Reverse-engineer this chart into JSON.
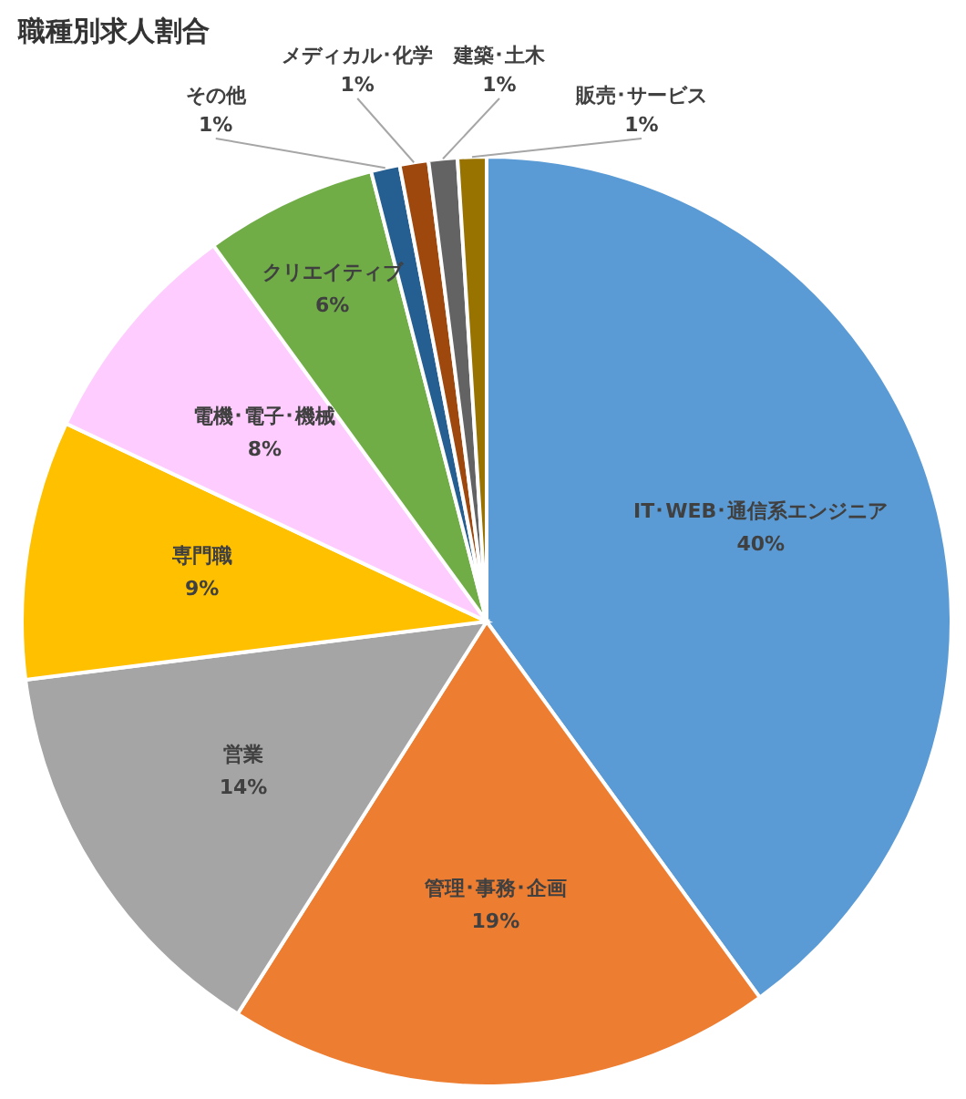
{
  "chart_data": {
    "type": "pie",
    "title": "職種別求人割合",
    "categories": [
      "IT･WEB･通信系エンジニア",
      "管理･事務･企画",
      "営業",
      "専門職",
      "電機･電子･機械",
      "クリエイティブ",
      "その他",
      "メディカル･化学",
      "建築･土木",
      "販売･サービス"
    ],
    "values": [
      40,
      19,
      14,
      9,
      8,
      6,
      1,
      1,
      1,
      1
    ],
    "value_labels": [
      "40%",
      "19%",
      "14%",
      "9%",
      "8%",
      "6%",
      "1%",
      "1%",
      "1%",
      "1%"
    ],
    "colors": [
      "#5b9bd5",
      "#ed7d31",
      "#a5a5a5",
      "#ffc000",
      "#ffccff",
      "#70ad47",
      "#255e91",
      "#9e480e",
      "#636363",
      "#997300"
    ]
  }
}
